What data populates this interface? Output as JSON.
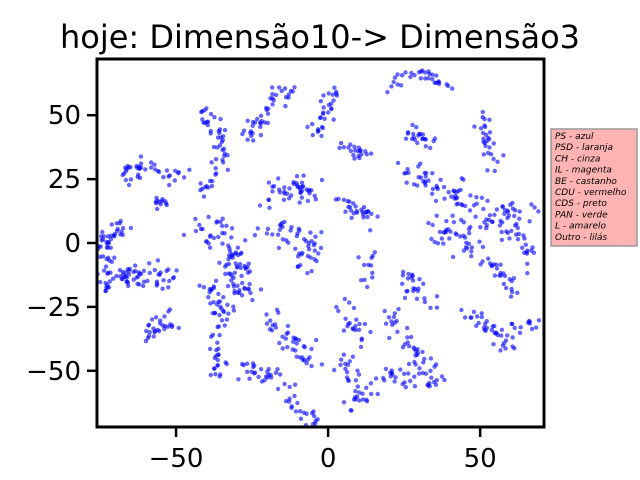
{
  "chart_data": {
    "type": "scatter",
    "title": "hoje: Dimensão10-> Dimensão3",
    "xlabel": "",
    "ylabel": "",
    "xlim": [
      -76,
      71
    ],
    "ylim": [
      -72,
      72
    ],
    "xticks": [
      -50,
      0,
      50
    ],
    "xtick_labels": [
      "−50",
      "0",
      "50"
    ],
    "yticks": [
      -50,
      -25,
      0,
      25,
      50
    ],
    "ytick_labels": [
      "−50",
      "−25",
      "0",
      "25",
      "50"
    ],
    "grid": false,
    "point_color": "#0000ff",
    "legend_box": {
      "placement": "right-outside",
      "facecolor": "#ffb3b3",
      "edgecolor": "#999999",
      "entries": [
        "PS - azul",
        "PSD - laranja",
        "CH - cinza",
        "IL - magenta",
        "BE - castanho",
        "CDU - vermelho",
        "CDS - preto",
        "PAN - verde",
        "L - amarelo",
        "Outro - lilás"
      ]
    },
    "series": [
      {
        "color": "#0000ff",
        "clusters": [
          {
            "path": [
              [
                -74,
                -20
              ],
              [
                -73,
                -10
              ],
              [
                -74,
                0
              ],
              [
                -70,
                5
              ],
              [
                -66,
                6
              ]
            ],
            "spread": 1.6,
            "count": 55
          },
          {
            "path": [
              [
                -70,
                -12
              ],
              [
                -62,
                -14
              ],
              [
                -55,
                -12
              ],
              [
                -52,
                -14
              ]
            ],
            "spread": 2.4,
            "count": 55
          },
          {
            "path": [
              [
                -67,
                24
              ],
              [
                -62,
                30
              ],
              [
                -55,
                28
              ],
              [
                -48,
                26
              ]
            ],
            "spread": 1.8,
            "count": 40
          },
          {
            "path": [
              [
                -58,
                17
              ],
              [
                -53,
                15
              ]
            ],
            "spread": 1.4,
            "count": 12
          },
          {
            "path": [
              [
                -60,
                -38
              ],
              [
                -56,
                -33
              ],
              [
                -52,
                -30
              ]
            ],
            "spread": 1.8,
            "count": 28
          },
          {
            "path": [
              [
                -42,
                52
              ],
              [
                -38,
                47
              ],
              [
                -35,
                36
              ],
              [
                -37,
                26
              ],
              [
                -42,
                20
              ]
            ],
            "spread": 1.6,
            "count": 50
          },
          {
            "path": [
              [
                -42,
                8
              ],
              [
                -38,
                4
              ],
              [
                -33,
                -2
              ],
              [
                -30,
                -10
              ],
              [
                -27,
                -22
              ]
            ],
            "spread": 3.0,
            "count": 85
          },
          {
            "path": [
              [
                -42,
                -15
              ],
              [
                -37,
                -20
              ],
              [
                -35,
                -28
              ],
              [
                -36,
                -37
              ]
            ],
            "spread": 2.0,
            "count": 38
          },
          {
            "path": [
              [
                -37,
                -42
              ],
              [
                -35,
                -48
              ],
              [
                -37,
                -54
              ]
            ],
            "spread": 1.4,
            "count": 18
          },
          {
            "path": [
              [
                -28,
                -50
              ],
              [
                -20,
                -52
              ],
              [
                -12,
                -55
              ]
            ],
            "spread": 1.8,
            "count": 30
          },
          {
            "path": [
              [
                -28,
                40
              ],
              [
                -22,
                48
              ],
              [
                -16,
                58
              ],
              [
                -10,
                63
              ]
            ],
            "spread": 1.8,
            "count": 42
          },
          {
            "path": [
              [
                -20,
                -28
              ],
              [
                -16,
                -35
              ],
              [
                -10,
                -42
              ],
              [
                -4,
                -48
              ]
            ],
            "spread": 2.2,
            "count": 40
          },
          {
            "path": [
              [
                -20,
                18
              ],
              [
                -14,
                22
              ],
              [
                -8,
                20
              ],
              [
                -2,
                20
              ]
            ],
            "spread": 2.6,
            "count": 45
          },
          {
            "path": [
              [
                -18,
                5
              ],
              [
                -10,
                3
              ],
              [
                -5,
                -2
              ],
              [
                -8,
                -10
              ]
            ],
            "spread": 2.8,
            "count": 50
          },
          {
            "path": [
              [
                -12,
                -62
              ],
              [
                -8,
                -66
              ],
              [
                -4,
                -70
              ]
            ],
            "spread": 1.4,
            "count": 20
          },
          {
            "path": [
              [
                -5,
                42
              ],
              [
                0,
                52
              ],
              [
                3,
                60
              ]
            ],
            "spread": 1.6,
            "count": 30
          },
          {
            "path": [
              [
                5,
                38
              ],
              [
                10,
                35
              ],
              [
                15,
                38
              ]
            ],
            "spread": 1.6,
            "count": 20
          },
          {
            "path": [
              [
                5,
                18
              ],
              [
                10,
                12
              ],
              [
                15,
                10
              ]
            ],
            "spread": 2.0,
            "count": 28
          },
          {
            "path": [
              [
                5,
                -25
              ],
              [
                8,
                -32
              ],
              [
                10,
                -38
              ]
            ],
            "spread": 1.6,
            "count": 22
          },
          {
            "path": [
              [
                12,
                -18
              ],
              [
                14,
                -5
              ]
            ],
            "spread": 1.4,
            "count": 12
          },
          {
            "path": [
              [
                5,
                -45
              ],
              [
                8,
                -52
              ],
              [
                12,
                -58
              ],
              [
                8,
                -66
              ]
            ],
            "spread": 1.8,
            "count": 35
          },
          {
            "path": [
              [
                18,
                -52
              ],
              [
                28,
                -53
              ],
              [
                38,
                -55
              ]
            ],
            "spread": 1.8,
            "count": 30
          },
          {
            "path": [
              [
                20,
                -28
              ],
              [
                26,
                -38
              ],
              [
                30,
                -46
              ],
              [
                34,
                -50
              ]
            ],
            "spread": 2.0,
            "count": 40
          },
          {
            "path": [
              [
                20,
                60
              ],
              [
                28,
                68
              ],
              [
                35,
                65
              ],
              [
                40,
                62
              ]
            ],
            "spread": 1.8,
            "count": 32
          },
          {
            "path": [
              [
                25,
                -12
              ],
              [
                30,
                -22
              ],
              [
                34,
                -26
              ]
            ],
            "spread": 1.8,
            "count": 25
          },
          {
            "path": [
              [
                25,
                45
              ],
              [
                30,
                40
              ],
              [
                35,
                38
              ]
            ],
            "spread": 1.6,
            "count": 22
          },
          {
            "path": [
              [
                28,
                28
              ],
              [
                35,
                22
              ],
              [
                42,
                18
              ],
              [
                48,
                12
              ],
              [
                52,
                8
              ],
              [
                58,
                10
              ],
              [
                65,
                15
              ]
            ],
            "spread": 3.0,
            "count": 100
          },
          {
            "path": [
              [
                35,
                8
              ],
              [
                42,
                0
              ],
              [
                50,
                -2
              ]
            ],
            "spread": 2.2,
            "count": 35
          },
          {
            "path": [
              [
                45,
                -25
              ],
              [
                50,
                -30
              ],
              [
                55,
                -35
              ],
              [
                60,
                -42
              ]
            ],
            "spread": 1.8,
            "count": 35
          },
          {
            "path": [
              [
                50,
                50
              ],
              [
                52,
                40
              ],
              [
                55,
                30
              ]
            ],
            "spread": 1.6,
            "count": 28
          },
          {
            "path": [
              [
                52,
                -8
              ],
              [
                58,
                -12
              ],
              [
                62,
                -20
              ]
            ],
            "spread": 1.8,
            "count": 25
          },
          {
            "path": [
              [
                62,
                -34
              ],
              [
                68,
                -32
              ],
              [
                72,
                -36
              ]
            ],
            "spread": 1.5,
            "count": 18
          },
          {
            "path": [
              [
                60,
                8
              ],
              [
                65,
                0
              ],
              [
                66,
                -8
              ]
            ],
            "spread": 1.6,
            "count": 20
          }
        ]
      }
    ]
  }
}
